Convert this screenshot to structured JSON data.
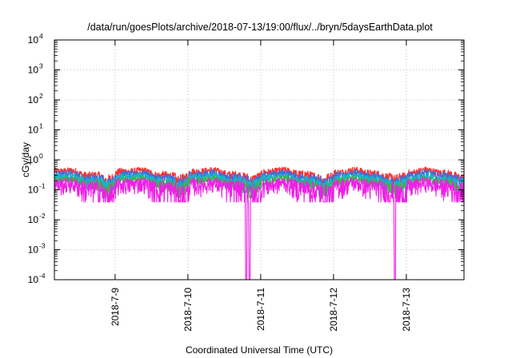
{
  "chart_data": {
    "type": "line",
    "title": "/data/run/goesPlots/archive/2018-07-13/19:00/flux/../bryn/5daysEarthData.plot",
    "xlabel": "Coordinated Universal Time (UTC)",
    "ylabel": "cGy/day",
    "y_scale": "log",
    "ylim": [
      0.0001,
      10000
    ],
    "xlim": [
      "2018-07-08T04:00",
      "2018-07-13T19:00"
    ],
    "y_ticks": [
      {
        "base": "10",
        "exp": "-4"
      },
      {
        "base": "10",
        "exp": "-3"
      },
      {
        "base": "10",
        "exp": "-2"
      },
      {
        "base": "10",
        "exp": "-1"
      },
      {
        "base": "10",
        "exp": "0"
      },
      {
        "base": "10",
        "exp": "1"
      },
      {
        "base": "10",
        "exp": "2"
      },
      {
        "base": "10",
        "exp": "3"
      },
      {
        "base": "10",
        "exp": "4"
      }
    ],
    "x_ticks": [
      {
        "label": "2018-7-9",
        "value": "2018-07-09T00:00"
      },
      {
        "label": "2018-7-10",
        "value": "2018-07-10T00:00"
      },
      {
        "label": "2018-7-11",
        "value": "2018-07-11T00:00"
      },
      {
        "label": "2018-7-12",
        "value": "2018-07-12T00:00"
      },
      {
        "label": "2018-7-13",
        "value": "2018-07-13T00:00"
      }
    ],
    "grid": true,
    "legend": "none",
    "series": [
      {
        "color": "#ff3030",
        "typical": 0.35,
        "spread": 0.12
      },
      {
        "color": "#3b6fe0",
        "typical": 0.28,
        "spread": 0.1
      },
      {
        "color": "#12b8c8",
        "typical": 0.22,
        "spread": 0.08
      },
      {
        "color": "#3cb44b",
        "typical": 0.18,
        "spread": 0.06
      },
      {
        "color": "#f01ee6",
        "typical": 0.13,
        "spread": 0.07
      }
    ],
    "dropouts": [
      {
        "start": "2018-07-10T19:00",
        "end": "2018-07-10T19:30",
        "value": 0.0001
      },
      {
        "start": "2018-07-10T20:00",
        "end": "2018-07-10T20:30",
        "value": 0.0001
      },
      {
        "start": "2018-07-12T20:00",
        "end": "2018-07-12T20:30",
        "value": 0.0001
      }
    ]
  }
}
